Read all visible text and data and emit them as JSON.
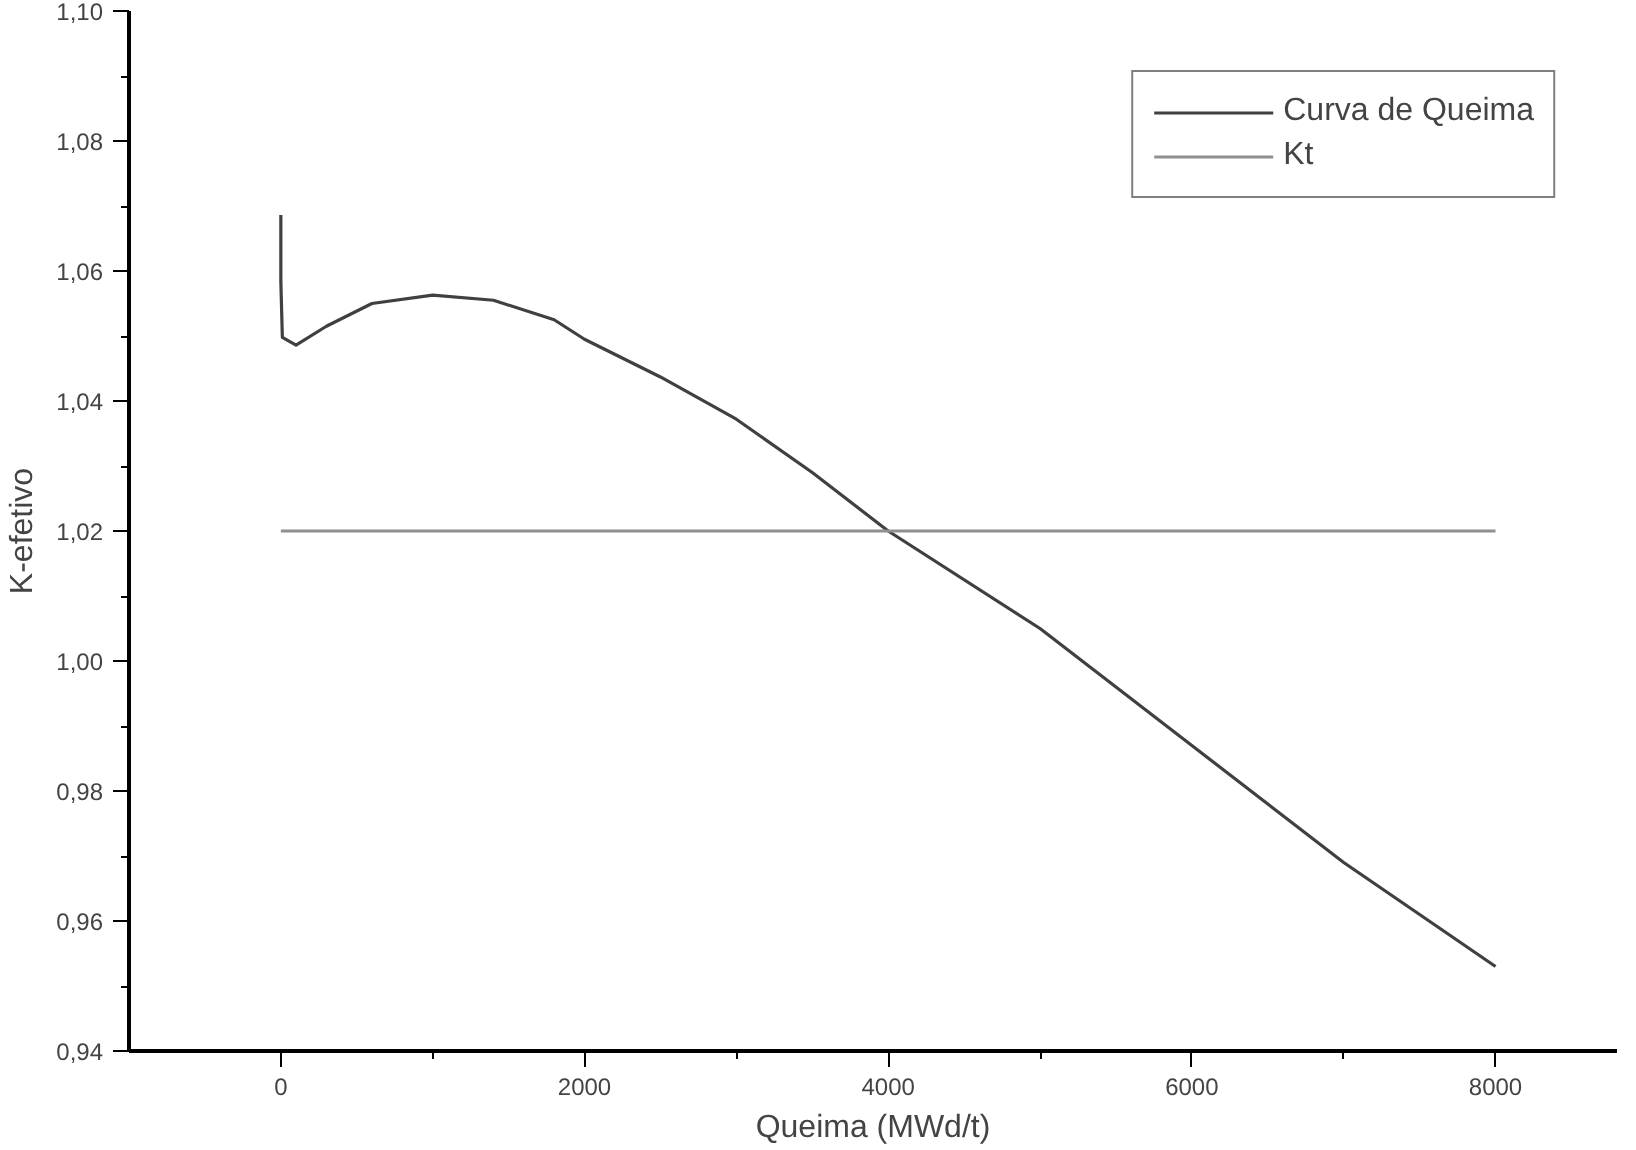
{
  "chart_data": {
    "type": "line",
    "xlabel": "Queima (MWd/t)",
    "ylabel": "K-efetivo",
    "xlim": [
      -1000,
      8800
    ],
    "xticks": [
      0,
      2000,
      4000,
      6000,
      8000
    ],
    "ylim": [
      0.94,
      1.1
    ],
    "yticks": [
      {
        "value": 0.94,
        "label": "0,94"
      },
      {
        "value": 0.96,
        "label": "0,96"
      },
      {
        "value": 0.98,
        "label": "0,98"
      },
      {
        "value": 1.0,
        "label": "1,00"
      },
      {
        "value": 1.02,
        "label": "1,02"
      },
      {
        "value": 1.04,
        "label": "1,04"
      },
      {
        "value": 1.06,
        "label": "1,06"
      },
      {
        "value": 1.08,
        "label": "1,08"
      },
      {
        "value": 1.1,
        "label": "1,10"
      }
    ],
    "grid": false,
    "legend": "top right",
    "line_style": "solid",
    "marker": "none",
    "series": [
      {
        "name": "Curva de Queima",
        "color": "#404040",
        "x": [
          0,
          0,
          10,
          100,
          300,
          600,
          1000,
          1400,
          1800,
          2000,
          2500,
          3000,
          3500,
          4000,
          5000,
          6000,
          7000,
          8000
        ],
        "values": [
          1.0686,
          1.0584,
          1.0498,
          1.0486,
          1.0515,
          1.055,
          1.0563,
          1.0555,
          1.0525,
          1.0495,
          1.0437,
          1.0372,
          1.029,
          1.02,
          1.005,
          0.987,
          0.969,
          0.953
        ]
      },
      {
        "name": "Kt",
        "color": "#909090",
        "x": [
          0,
          8000
        ],
        "values": [
          1.02,
          1.02
        ]
      }
    ]
  }
}
